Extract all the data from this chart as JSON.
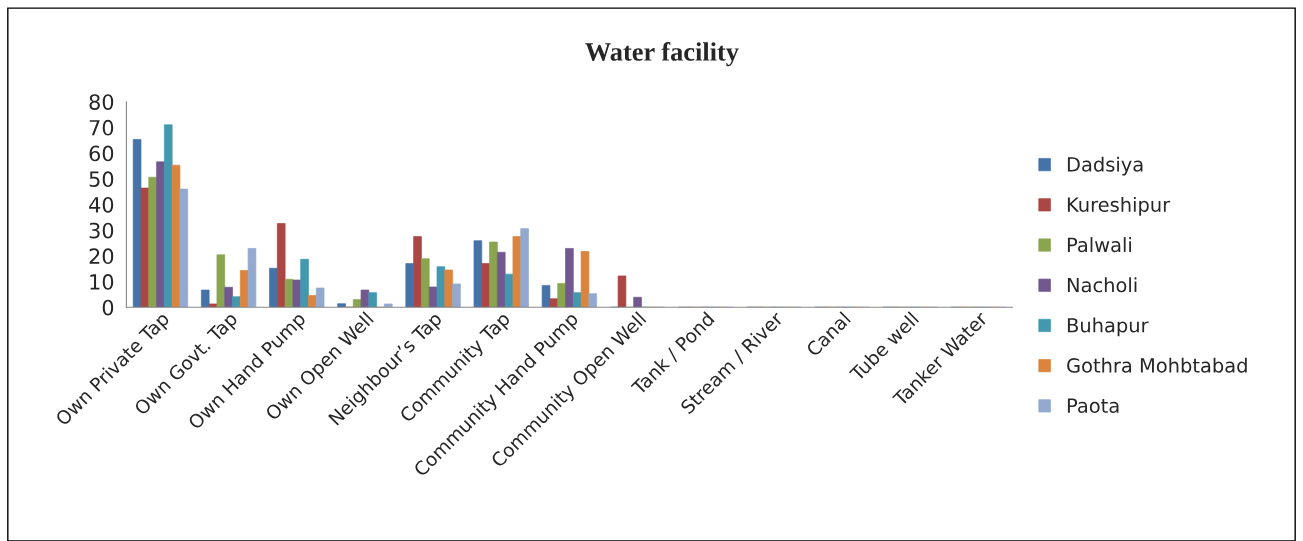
{
  "chart_data": {
    "type": "bar",
    "title": "Water facility",
    "categories": [
      "Own Private Tap",
      "Own Govt. Tap",
      "Own Hand Pump",
      "Own Open Well",
      "Neighbour’s Tap",
      "Community Tap",
      "Community Hand Pump",
      "Community Open Well",
      "Tank / Pond",
      "Stream / River",
      "Canal",
      "Tube well",
      "Tanker Water"
    ],
    "series": [
      {
        "name": "Dadsiya",
        "color": "#4572a7",
        "values": [
          65.3,
          6.7,
          15.2,
          1.4,
          17.0,
          25.9,
          8.5,
          0,
          0,
          0,
          0,
          0,
          0
        ]
      },
      {
        "name": "Kureshipur",
        "color": "#aa4643",
        "values": [
          46.4,
          1.3,
          32.6,
          0,
          27.5,
          17.0,
          3.3,
          12.2,
          0,
          0,
          0,
          0,
          0
        ]
      },
      {
        "name": "Palwali",
        "color": "#89a54e",
        "values": [
          50.6,
          20.4,
          10.9,
          3.0,
          18.9,
          25.4,
          9.3,
          0,
          0,
          0,
          0,
          0,
          0
        ]
      },
      {
        "name": "Nacholi",
        "color": "#71588f",
        "values": [
          56.6,
          7.8,
          10.6,
          6.7,
          7.9,
          21.4,
          22.9,
          3.9,
          0,
          0,
          0,
          0,
          0
        ]
      },
      {
        "name": "Buhapur",
        "color": "#4198af",
        "values": [
          71.0,
          4.1,
          18.7,
          5.7,
          15.8,
          12.9,
          5.7,
          0,
          0,
          0,
          0,
          0,
          0
        ]
      },
      {
        "name": "Gothra Mohbtabad",
        "color": "#db843d",
        "values": [
          55.3,
          14.3,
          4.6,
          0,
          14.5,
          27.5,
          21.7,
          0,
          0,
          0,
          0,
          0,
          0
        ]
      },
      {
        "name": "Paota",
        "color": "#93a9cf",
        "values": [
          46.0,
          22.9,
          7.5,
          1.3,
          9.1,
          30.6,
          5.3,
          0,
          0,
          0,
          0,
          0,
          0
        ]
      }
    ],
    "ylim": [
      0,
      80
    ],
    "yticks": [
      0,
      10,
      20,
      30,
      40,
      50,
      60,
      70,
      80
    ],
    "grid": false,
    "legend": "right"
  }
}
